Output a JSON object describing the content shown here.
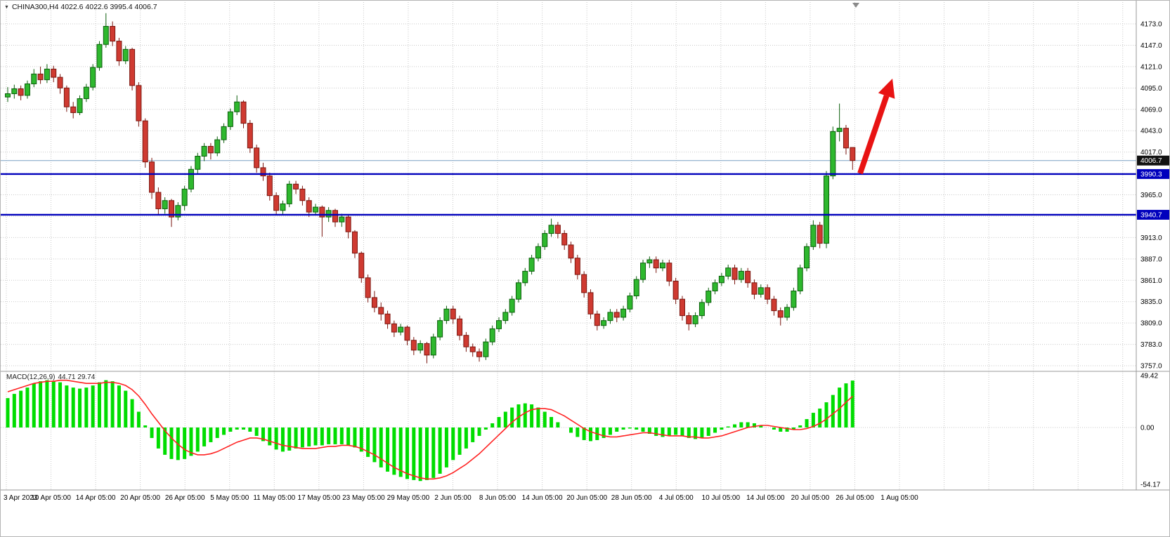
{
  "symbol_info": {
    "dropdown_icon": "▼",
    "text": "CHINA300,H4  4022.6 4022.6 3995.4 4006.7"
  },
  "chart_data": {
    "type": "candlestick",
    "symbol": "CHINA300",
    "timeframe": "H4",
    "current_bar": {
      "open": 4022.6,
      "high": 4022.6,
      "low": 3995.4,
      "close": 4006.7
    },
    "current_price": 4006.7,
    "current_price_badge": "4006.7",
    "visible_price_range": [
      3750,
      4196
    ],
    "price_axis_ticks": [
      "4173.0",
      "4147.0",
      "4121.0",
      "4095.0",
      "4069.0",
      "4043.0",
      "4017.0",
      "3991.0",
      "3965.0",
      "3939.0",
      "3913.0",
      "3887.0",
      "3861.0",
      "3835.0",
      "3809.0",
      "3783.0",
      "3757.0"
    ],
    "time_axis_labels": [
      "3 Apr 2023",
      "10 Apr 05:00",
      "14 Apr 05:00",
      "20 Apr 05:00",
      "26 Apr 05:00",
      "5 May 05:00",
      "11 May 05:00",
      "17 May 05:00",
      "23 May 05:00",
      "29 May 05:00",
      "2 Jun 05:00",
      "8 Jun 05:00",
      "14 Jun 05:00",
      "20 Jun 05:00",
      "28 Jun 05:00",
      "4 Jul 05:00",
      "10 Jul 05:00",
      "14 Jul 05:00",
      "20 Jul 05:00",
      "26 Jul 05:00",
      "1 Aug 05:00"
    ],
    "horizontal_lines": [
      {
        "price": 3990.3,
        "badge": "3990.3"
      },
      {
        "price": 3940.7,
        "badge": "3940.7"
      }
    ],
    "annotations": [
      {
        "type": "arrow-up-right",
        "meaning": "bullish-breakout-projection"
      }
    ],
    "candles_ohlc": [
      [
        4084,
        4096,
        4078,
        4088
      ],
      [
        4088,
        4099,
        4082,
        4094
      ],
      [
        4094,
        4098,
        4080,
        4086
      ],
      [
        4086,
        4104,
        4082,
        4100
      ],
      [
        4100,
        4118,
        4096,
        4112
      ],
      [
        4112,
        4121,
        4100,
        4105
      ],
      [
        4105,
        4124,
        4101,
        4118
      ],
      [
        4118,
        4122,
        4102,
        4108
      ],
      [
        4108,
        4112,
        4088,
        4095
      ],
      [
        4095,
        4098,
        4066,
        4072
      ],
      [
        4072,
        4078,
        4058,
        4065
      ],
      [
        4065,
        4086,
        4062,
        4082
      ],
      [
        4082,
        4100,
        4078,
        4096
      ],
      [
        4096,
        4124,
        4092,
        4120
      ],
      [
        4120,
        4152,
        4116,
        4148
      ],
      [
        4148,
        4186,
        4144,
        4170
      ],
      [
        4170,
        4176,
        4146,
        4152
      ],
      [
        4152,
        4156,
        4122,
        4128
      ],
      [
        4128,
        4146,
        4124,
        4142
      ],
      [
        4142,
        4144,
        4092,
        4098
      ],
      [
        4098,
        4102,
        4048,
        4055
      ],
      [
        4055,
        4058,
        3998,
        4005
      ],
      [
        4005,
        4010,
        3960,
        3968
      ],
      [
        3968,
        3974,
        3940,
        3948
      ],
      [
        3948,
        3962,
        3942,
        3958
      ],
      [
        3958,
        3960,
        3926,
        3938
      ],
      [
        3938,
        3956,
        3934,
        3952
      ],
      [
        3952,
        3976,
        3946,
        3972
      ],
      [
        3972,
        4000,
        3968,
        3996
      ],
      [
        3996,
        4016,
        3990,
        4012
      ],
      [
        4012,
        4028,
        4006,
        4024
      ],
      [
        4024,
        4028,
        4008,
        4016
      ],
      [
        4016,
        4036,
        4012,
        4032
      ],
      [
        4032,
        4052,
        4028,
        4048
      ],
      [
        4048,
        4070,
        4044,
        4066
      ],
      [
        4066,
        4086,
        4062,
        4078
      ],
      [
        4078,
        4080,
        4046,
        4052
      ],
      [
        4052,
        4056,
        4016,
        4022
      ],
      [
        4022,
        4026,
        3992,
        3998
      ],
      [
        3998,
        4004,
        3982,
        3988
      ],
      [
        3988,
        3992,
        3958,
        3964
      ],
      [
        3964,
        3968,
        3940,
        3946
      ],
      [
        3946,
        3958,
        3940,
        3954
      ],
      [
        3954,
        3982,
        3950,
        3978
      ],
      [
        3978,
        3982,
        3966,
        3972
      ],
      [
        3972,
        3976,
        3952,
        3958
      ],
      [
        3958,
        3962,
        3938,
        3944
      ],
      [
        3944,
        3954,
        3940,
        3950
      ],
      [
        3950,
        3952,
        3914,
        3938
      ],
      [
        3938,
        3950,
        3932,
        3946
      ],
      [
        3946,
        3948,
        3926,
        3932
      ],
      [
        3932,
        3942,
        3926,
        3938
      ],
      [
        3938,
        3940,
        3912,
        3920
      ],
      [
        3920,
        3922,
        3888,
        3894
      ],
      [
        3894,
        3896,
        3858,
        3864
      ],
      [
        3864,
        3868,
        3834,
        3840
      ],
      [
        3840,
        3848,
        3822,
        3828
      ],
      [
        3828,
        3834,
        3812,
        3820
      ],
      [
        3820,
        3824,
        3802,
        3808
      ],
      [
        3808,
        3812,
        3792,
        3798
      ],
      [
        3798,
        3808,
        3794,
        3804
      ],
      [
        3804,
        3806,
        3782,
        3788
      ],
      [
        3788,
        3792,
        3770,
        3776
      ],
      [
        3776,
        3788,
        3772,
        3784
      ],
      [
        3784,
        3786,
        3760,
        3770
      ],
      [
        3770,
        3796,
        3766,
        3792
      ],
      [
        3792,
        3816,
        3788,
        3812
      ],
      [
        3812,
        3830,
        3808,
        3826
      ],
      [
        3826,
        3830,
        3808,
        3814
      ],
      [
        3814,
        3818,
        3788,
        3794
      ],
      [
        3794,
        3798,
        3774,
        3780
      ],
      [
        3780,
        3784,
        3768,
        3774
      ],
      [
        3774,
        3778,
        3762,
        3768
      ],
      [
        3768,
        3790,
        3764,
        3786
      ],
      [
        3786,
        3806,
        3782,
        3802
      ],
      [
        3802,
        3816,
        3798,
        3812
      ],
      [
        3812,
        3826,
        3808,
        3822
      ],
      [
        3822,
        3842,
        3818,
        3838
      ],
      [
        3838,
        3862,
        3834,
        3858
      ],
      [
        3858,
        3876,
        3854,
        3872
      ],
      [
        3872,
        3892,
        3868,
        3888
      ],
      [
        3888,
        3906,
        3884,
        3902
      ],
      [
        3902,
        3922,
        3898,
        3918
      ],
      [
        3918,
        3936,
        3914,
        3928
      ],
      [
        3928,
        3932,
        3912,
        3918
      ],
      [
        3918,
        3922,
        3898,
        3904
      ],
      [
        3904,
        3908,
        3882,
        3888
      ],
      [
        3888,
        3892,
        3862,
        3868
      ],
      [
        3868,
        3872,
        3840,
        3846
      ],
      [
        3846,
        3850,
        3814,
        3820
      ],
      [
        3820,
        3824,
        3800,
        3806
      ],
      [
        3806,
        3816,
        3802,
        3812
      ],
      [
        3812,
        3826,
        3808,
        3822
      ],
      [
        3822,
        3826,
        3810,
        3816
      ],
      [
        3816,
        3830,
        3812,
        3826
      ],
      [
        3826,
        3846,
        3822,
        3842
      ],
      [
        3842,
        3866,
        3838,
        3862
      ],
      [
        3862,
        3886,
        3858,
        3882
      ],
      [
        3882,
        3890,
        3876,
        3886
      ],
      [
        3886,
        3890,
        3870,
        3876
      ],
      [
        3876,
        3886,
        3872,
        3882
      ],
      [
        3882,
        3886,
        3854,
        3860
      ],
      [
        3860,
        3864,
        3832,
        3838
      ],
      [
        3838,
        3842,
        3812,
        3818
      ],
      [
        3818,
        3822,
        3800,
        3808
      ],
      [
        3808,
        3822,
        3804,
        3818
      ],
      [
        3818,
        3838,
        3814,
        3834
      ],
      [
        3834,
        3852,
        3830,
        3848
      ],
      [
        3848,
        3862,
        3844,
        3858
      ],
      [
        3858,
        3870,
        3854,
        3866
      ],
      [
        3866,
        3880,
        3862,
        3876
      ],
      [
        3876,
        3880,
        3856,
        3862
      ],
      [
        3862,
        3876,
        3858,
        3872
      ],
      [
        3872,
        3876,
        3852,
        3858
      ],
      [
        3858,
        3862,
        3838,
        3844
      ],
      [
        3844,
        3856,
        3840,
        3852
      ],
      [
        3852,
        3856,
        3832,
        3838
      ],
      [
        3838,
        3842,
        3818,
        3824
      ],
      [
        3824,
        3828,
        3806,
        3816
      ],
      [
        3816,
        3832,
        3812,
        3828
      ],
      [
        3828,
        3852,
        3824,
        3848
      ],
      [
        3848,
        3880,
        3844,
        3876
      ],
      [
        3876,
        3906,
        3872,
        3902
      ],
      [
        3902,
        3934,
        3898,
        3928
      ],
      [
        3928,
        3932,
        3900,
        3906
      ],
      [
        3906,
        3994,
        3900,
        3988
      ],
      [
        3988,
        4048,
        3984,
        4042
      ],
      [
        4042,
        4076,
        4030,
        4046
      ],
      [
        4046,
        4050,
        4014,
        4022
      ],
      [
        4022.6,
        4022.6,
        3995.4,
        4006.7
      ]
    ],
    "indicator": {
      "name_label": "MACD(12,26,9)",
      "values_label": "44.71 29.74",
      "macd_value": 44.71,
      "signal_value": 29.74,
      "axis_ticks": [
        "49.42",
        "0.00",
        "-54.17"
      ],
      "range": {
        "min": -54.17,
        "max": 49.42
      },
      "histogram": [
        28,
        32,
        35,
        38,
        42,
        44,
        45,
        44,
        43,
        40,
        38,
        37,
        38,
        40,
        43,
        45,
        44,
        40,
        35,
        27,
        15,
        2,
        -10,
        -20,
        -26,
        -30,
        -31,
        -30,
        -27,
        -23,
        -18,
        -14,
        -10,
        -7,
        -4,
        -2,
        -2,
        -4,
        -8,
        -13,
        -17,
        -21,
        -23,
        -22,
        -20,
        -19,
        -18,
        -17,
        -17,
        -16,
        -16,
        -16,
        -17,
        -19,
        -23,
        -28,
        -33,
        -38,
        -42,
        -45,
        -47,
        -49,
        -50,
        -51,
        -50,
        -48,
        -44,
        -38,
        -31,
        -26,
        -20,
        -14,
        -8,
        -2,
        4,
        10,
        15,
        19,
        22,
        23,
        22,
        19,
        15,
        10,
        5,
        0,
        -5,
        -9,
        -12,
        -13,
        -12,
        -10,
        -7,
        -4,
        -2,
        -1,
        -2,
        -4,
        -6,
        -8,
        -9,
        -8,
        -7,
        -8,
        -10,
        -11,
        -10,
        -8,
        -5,
        -2,
        1,
        3,
        5,
        5,
        4,
        2,
        0,
        -2,
        -4,
        -4,
        -2,
        2,
        8,
        14,
        18,
        24,
        31,
        38,
        42,
        44.71
      ],
      "signal": [
        34,
        36,
        38,
        40,
        42,
        43,
        44,
        44,
        45,
        45,
        44,
        43,
        42,
        42,
        42,
        43,
        43,
        42,
        40,
        36,
        30,
        22,
        13,
        5,
        -3,
        -10,
        -16,
        -21,
        -24,
        -26,
        -26,
        -25,
        -23,
        -20,
        -17,
        -14,
        -12,
        -10,
        -10,
        -11,
        -13,
        -15,
        -17,
        -18,
        -19,
        -20,
        -20,
        -20,
        -19,
        -18,
        -18,
        -17,
        -17,
        -18,
        -20,
        -23,
        -26,
        -30,
        -34,
        -38,
        -41,
        -44,
        -46,
        -48,
        -49,
        -49,
        -48,
        -46,
        -43,
        -39,
        -35,
        -30,
        -25,
        -19,
        -13,
        -7,
        -1,
        5,
        10,
        14,
        17,
        18,
        18,
        17,
        14,
        11,
        7,
        3,
        -1,
        -4,
        -6,
        -8,
        -9,
        -9,
        -8,
        -7,
        -6,
        -5,
        -5,
        -6,
        -7,
        -8,
        -8,
        -8,
        -9,
        -9,
        -10,
        -10,
        -9,
        -8,
        -6,
        -4,
        -2,
        0,
        1,
        2,
        2,
        1,
        0,
        -1,
        -2,
        -2,
        -1,
        1,
        4,
        8,
        13,
        18,
        24,
        29.74
      ]
    }
  },
  "colors": {
    "background": "#ffffff",
    "grid": "#c9c9c9",
    "bull": "#2eb82e",
    "bull_border": "#0b5e0b",
    "bear": "#cf3a31",
    "bear_border": "#7a160f",
    "hline": "#0000bd",
    "badge_price_bg": "#111111",
    "badge_line_bg": "#0000bd",
    "macd_hist": "#00dd00",
    "macd_signal": "#ff2222",
    "arrow": "#e81313",
    "bid_line": "#7aa0c4",
    "separator": "#9a9a9a",
    "axis_text": "#000000"
  }
}
